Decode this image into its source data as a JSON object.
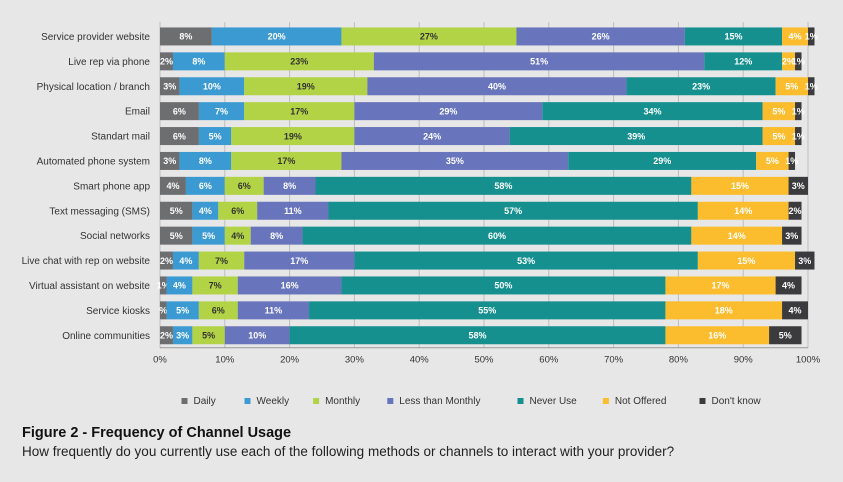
{
  "caption": {
    "title": "Figure 2 - Frequency of Channel Usage",
    "subtitle": "How frequently do you currently use each of the following methods or channels to interact with your provider?"
  },
  "chart_data": {
    "type": "bar",
    "orientation": "horizontal",
    "stacked": true,
    "title": "Figure 2 - Frequency of Channel Usage",
    "xlabel": "",
    "ylabel": "",
    "xlim": [
      0,
      100
    ],
    "x_ticks": [
      "0%",
      "10%",
      "20%",
      "30%",
      "40%",
      "50%",
      "60%",
      "70%",
      "80%",
      "90%",
      "100%"
    ],
    "grid": "vertical",
    "legend_position": "bottom",
    "categories": [
      "Service provider website",
      "Live rep via phone",
      "Physical location / branch",
      "Email",
      "Standart mail",
      "Automated phone system",
      "Smart phone app",
      "Text messaging (SMS)",
      "Social networks",
      "Live chat with rep on website",
      "Virtual assistant on website",
      "Service kiosks",
      "Online communities"
    ],
    "series": [
      {
        "name": "Daily",
        "color": "#6d6e70",
        "label_color": "#ffffff",
        "values": [
          8,
          2,
          3,
          6,
          6,
          3,
          4,
          5,
          5,
          2,
          1,
          1,
          2
        ],
        "labels": [
          "8%",
          "2%",
          "3%",
          "6%",
          "6%",
          "3%",
          "4%",
          "5%",
          "5%",
          "2%",
          "1%",
          "%",
          "2%"
        ]
      },
      {
        "name": "Weekly",
        "color": "#3c9ad3",
        "label_color": "#ffffff",
        "values": [
          20,
          8,
          10,
          7,
          5,
          8,
          6,
          4,
          5,
          4,
          4,
          5,
          3
        ],
        "labels": [
          "20%",
          "8%",
          "10%",
          "7%",
          "5%",
          "8%",
          "6%",
          "4%",
          "5%",
          "4%",
          "4%",
          "5%",
          "3%"
        ]
      },
      {
        "name": "Monthly",
        "color": "#b2d345",
        "label_color": "#333333",
        "values": [
          27,
          23,
          19,
          17,
          19,
          17,
          6,
          6,
          4,
          7,
          7,
          6,
          5
        ],
        "labels": [
          "27%",
          "23%",
          "19%",
          "17%",
          "19%",
          "17%",
          "6%",
          "6%",
          "4%",
          "7%",
          "7%",
          "6%",
          "5%"
        ]
      },
      {
        "name": "Less than Monthly",
        "color": "#6874bb",
        "label_color": "#ffffff",
        "values": [
          26,
          51,
          40,
          29,
          24,
          35,
          8,
          11,
          8,
          17,
          16,
          11,
          10
        ],
        "labels": [
          "26%",
          "51%",
          "40%",
          "29%",
          "24%",
          "35%",
          "8%",
          "11%",
          "8%",
          "17%",
          "16%",
          "11%",
          "10%"
        ]
      },
      {
        "name": "Never Use",
        "color": "#15908f",
        "label_color": "#ffffff",
        "values": [
          15,
          12,
          23,
          34,
          39,
          29,
          58,
          57,
          60,
          53,
          50,
          55,
          58
        ],
        "labels": [
          "15%",
          "12%",
          "23%",
          "34%",
          "39%",
          "29%",
          "58%",
          "57%",
          "60%",
          "53%",
          "50%",
          "55%",
          "58%"
        ]
      },
      {
        "name": "Not Offered",
        "color": "#fbbd2e",
        "label_color": "#ffffff",
        "values": [
          4,
          2,
          5,
          5,
          5,
          5,
          15,
          14,
          14,
          15,
          17,
          18,
          16
        ],
        "labels": [
          "4%",
          "2%",
          "5%",
          "5%",
          "5%",
          "5%",
          "15%",
          "14%",
          "14%",
          "15%",
          "17%",
          "18%",
          "16%"
        ]
      },
      {
        "name": "Don't know",
        "color": "#3b3b3d",
        "label_color": "#ffffff",
        "values": [
          1,
          1,
          1,
          1,
          1,
          1,
          3,
          2,
          3,
          3,
          4,
          4,
          5
        ],
        "labels": [
          "1%",
          "1%",
          "1%",
          "1%",
          "1%",
          "1%",
          "3%",
          "2%",
          "3%",
          "3%",
          "4%",
          "4%",
          "5%"
        ]
      }
    ]
  }
}
